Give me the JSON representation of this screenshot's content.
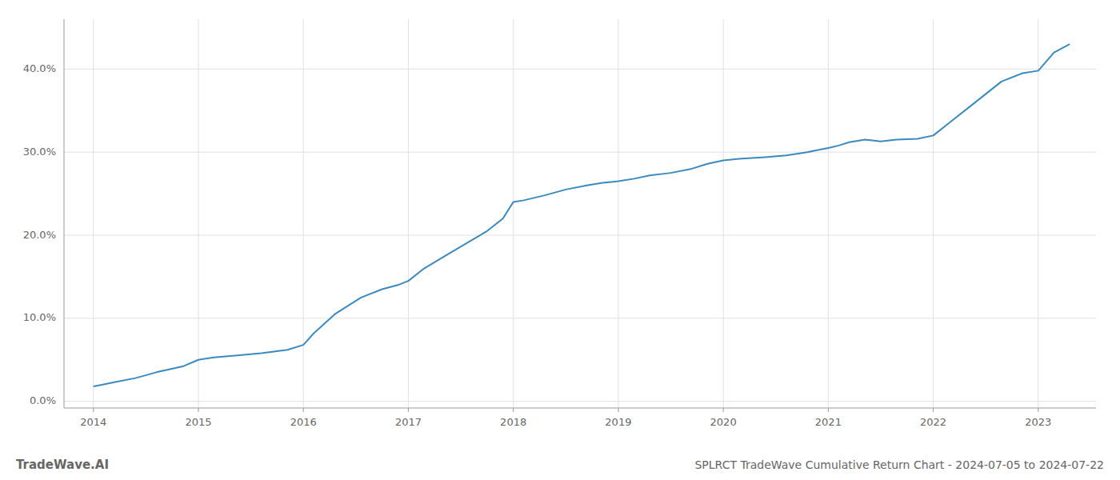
{
  "chart_data": {
    "type": "line",
    "title": "SPLRCT TradeWave Cumulative Return Chart - 2024-07-05 to 2024-07-22",
    "annotations": [
      "TradeWave.AI"
    ],
    "color": "#3a8abf",
    "grid": true,
    "x": [
      2014.0,
      2014.08,
      2014.2,
      2014.4,
      2014.6,
      2014.85,
      2015.0,
      2015.15,
      2015.35,
      2015.6,
      2015.85,
      2016.0,
      2016.1,
      2016.3,
      2016.55,
      2016.75,
      2016.9,
      2017.0,
      2017.15,
      2017.35,
      2017.55,
      2017.75,
      2017.9,
      2018.0,
      2018.1,
      2018.3,
      2018.5,
      2018.7,
      2018.85,
      2019.0,
      2019.15,
      2019.3,
      2019.5,
      2019.7,
      2019.85,
      2020.0,
      2020.15,
      2020.4,
      2020.6,
      2020.8,
      2021.0,
      2021.1,
      2021.2,
      2021.35,
      2021.5,
      2021.65,
      2021.85,
      2022.0,
      2022.15,
      2022.4,
      2022.65,
      2022.85,
      2023.0,
      2023.15,
      2023.3
    ],
    "values": [
      0.018,
      0.02,
      0.023,
      0.028,
      0.035,
      0.042,
      0.05,
      0.053,
      0.055,
      0.058,
      0.062,
      0.068,
      0.082,
      0.105,
      0.125,
      0.135,
      0.14,
      0.145,
      0.16,
      0.175,
      0.19,
      0.205,
      0.22,
      0.24,
      0.242,
      0.248,
      0.255,
      0.26,
      0.263,
      0.265,
      0.268,
      0.272,
      0.275,
      0.28,
      0.286,
      0.29,
      0.292,
      0.294,
      0.296,
      0.3,
      0.305,
      0.308,
      0.312,
      0.315,
      0.313,
      0.315,
      0.316,
      0.32,
      0.335,
      0.36,
      0.385,
      0.395,
      0.398,
      0.42,
      0.43
    ],
    "xlim": [
      2013.72,
      2023.55
    ],
    "ylim": [
      -0.008,
      0.46
    ],
    "xticks": [
      2014,
      2015,
      2016,
      2017,
      2018,
      2019,
      2020,
      2021,
      2022,
      2023
    ],
    "yticks": [
      {
        "value": 0.0,
        "label": "0.0%"
      },
      {
        "value": 0.1,
        "label": "10.0%"
      },
      {
        "value": 0.2,
        "label": "20.0%"
      },
      {
        "value": 0.3,
        "label": "30.0%"
      },
      {
        "value": 0.4,
        "label": "40.0%"
      }
    ]
  }
}
